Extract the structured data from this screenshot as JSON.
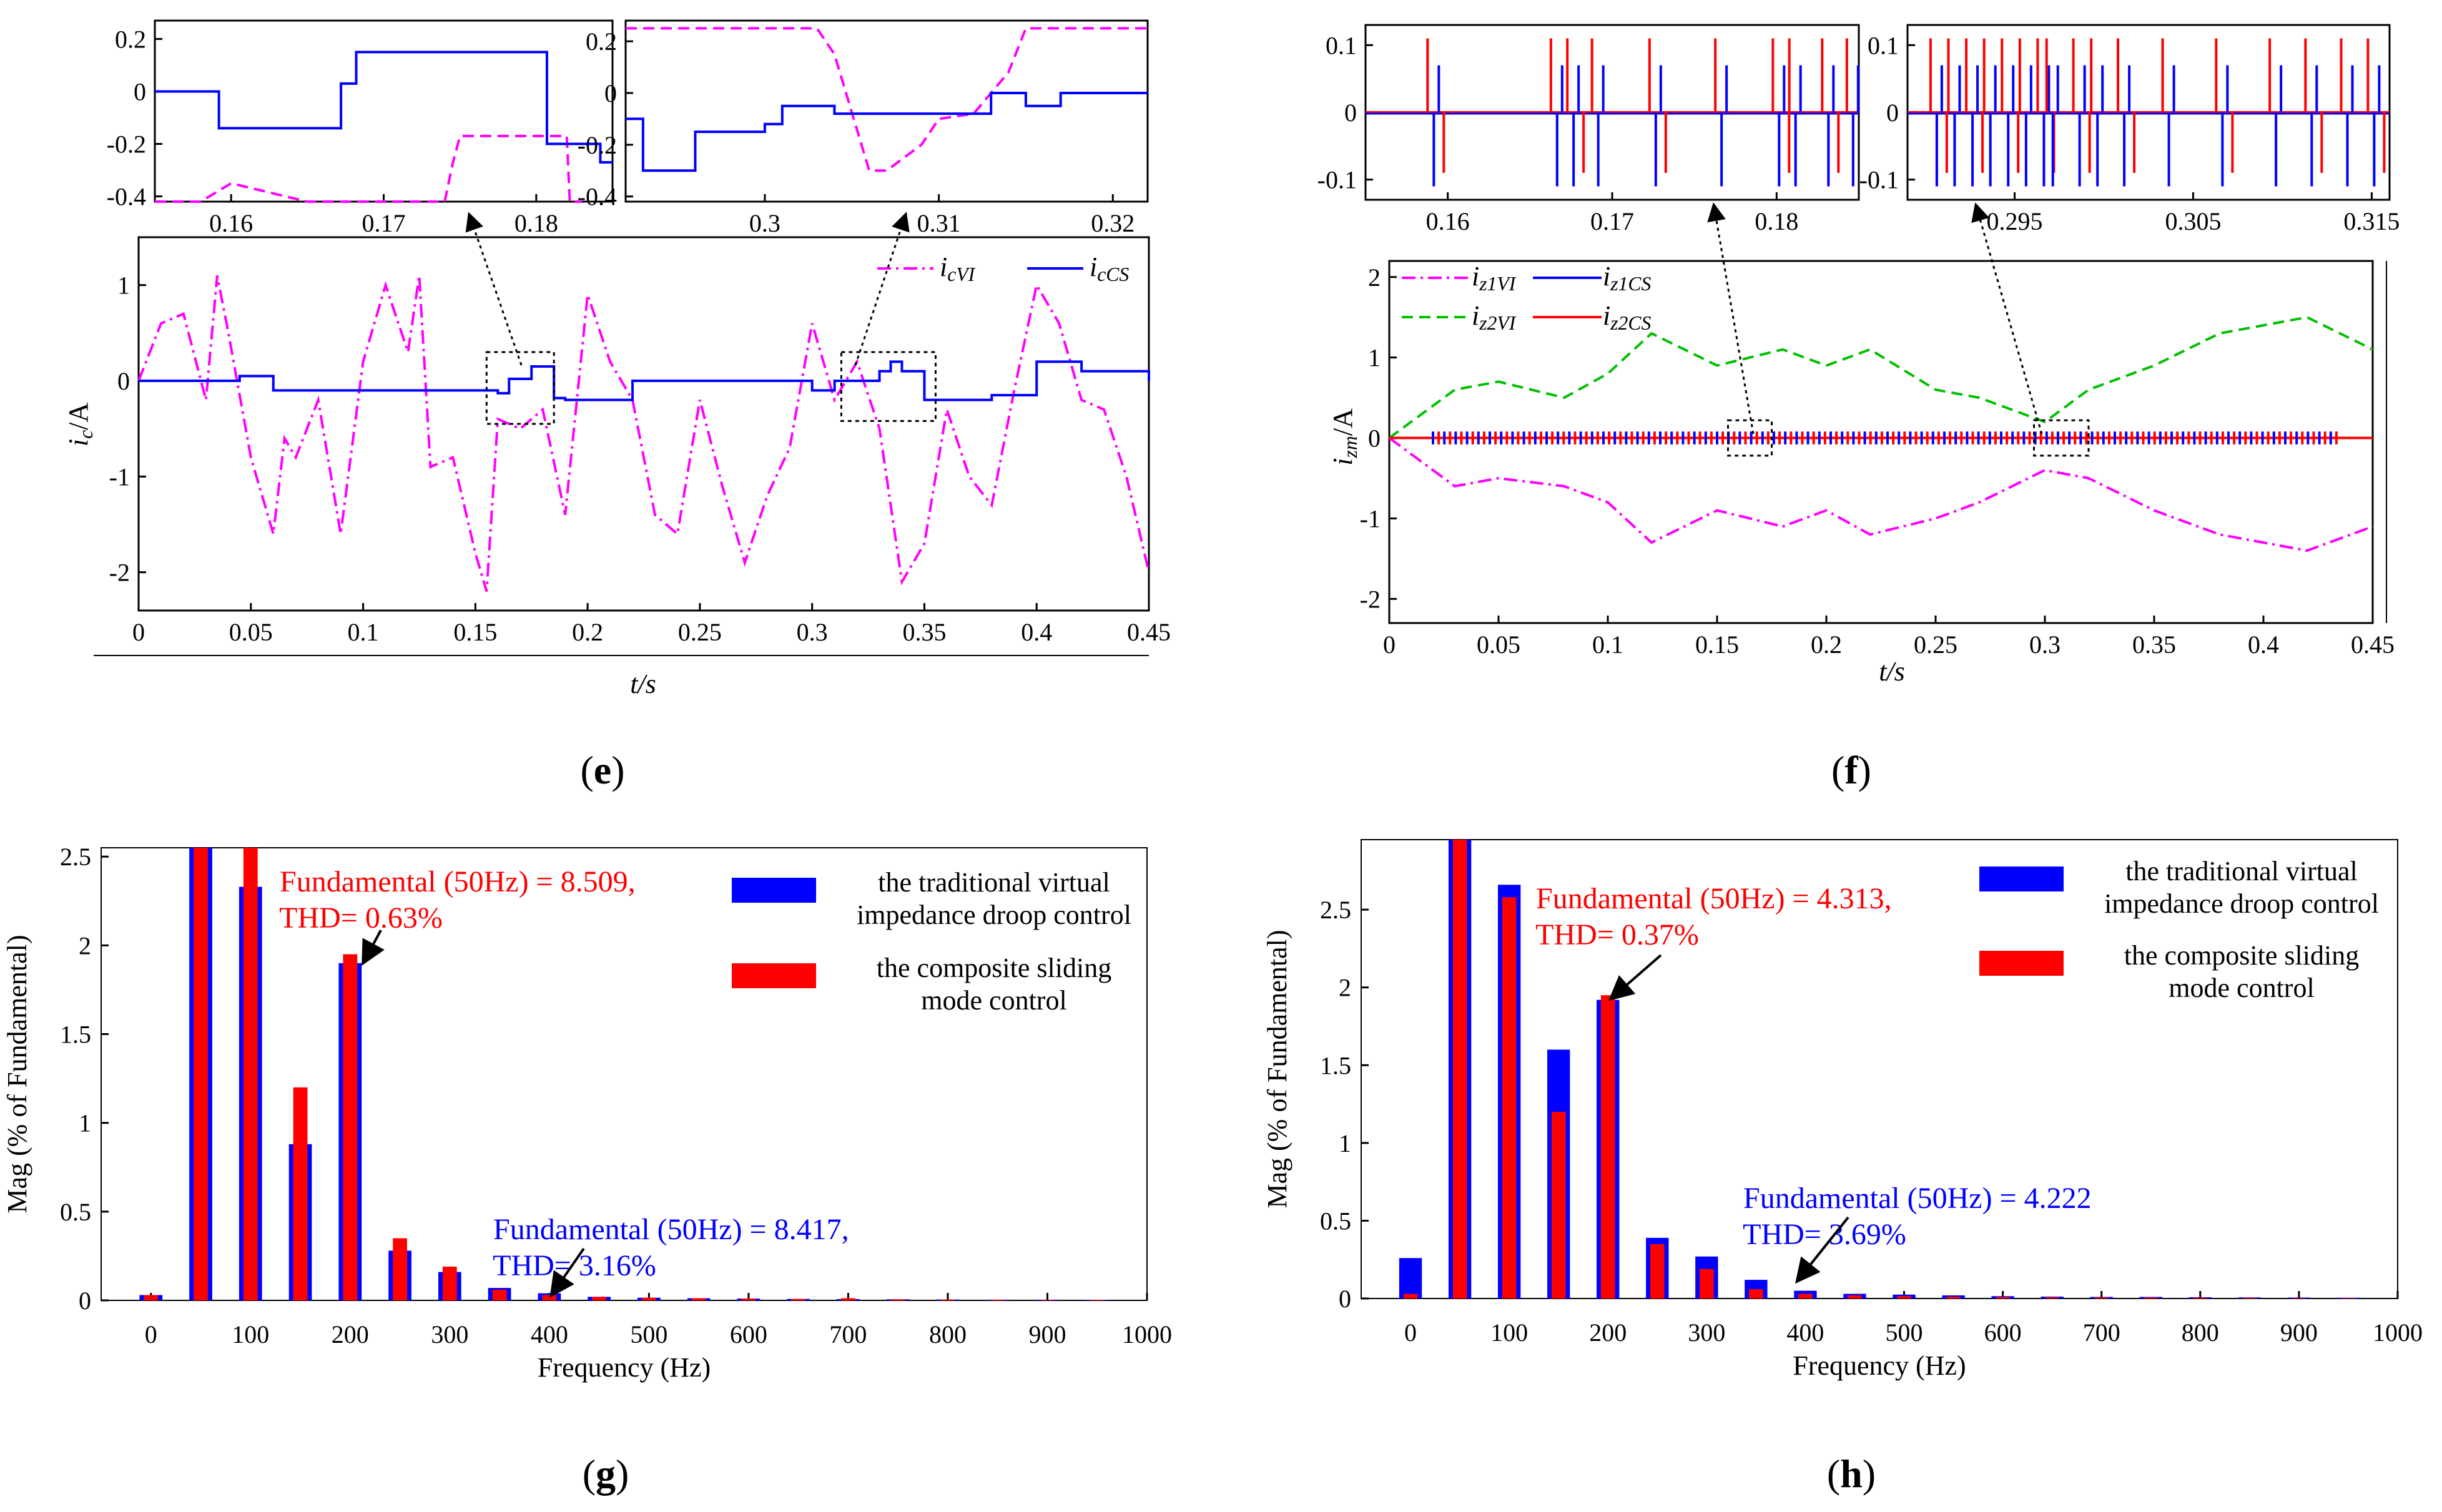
{
  "colors": {
    "magenta": "#ff00ff",
    "blue": "#0000ff",
    "red": "#ff0000",
    "green": "#00c000",
    "black": "#000000"
  },
  "panels": {
    "e": {
      "label_open": "(",
      "label_letter": "e",
      "label_close": ")"
    },
    "f": {
      "label_open": "(",
      "label_letter": "f",
      "label_close": ")"
    },
    "g": {
      "label_open": "(",
      "label_letter": "g",
      "label_close": ")"
    },
    "h": {
      "label_open": "(",
      "label_letter": "h",
      "label_close": ")"
    }
  },
  "chart_data": [
    {
      "id": "e-main",
      "type": "line",
      "xlabel": "t/s",
      "ylabel": "i_c/A",
      "xlim": [
        0,
        0.45
      ],
      "ylim": [
        -2.4,
        1.5
      ],
      "xticks": [
        "0",
        "0.05",
        "0.1",
        "0.15",
        "0.2",
        "0.25",
        "0.3",
        "0.35",
        "0.4",
        "0.45"
      ],
      "yticks": [
        "1",
        "0",
        "-1",
        "-2"
      ],
      "series": [
        {
          "name": "i_cVI",
          "style": "dash-dot",
          "color": "magenta",
          "x": [
            0,
            0.01,
            0.02,
            0.03,
            0.035,
            0.04,
            0.05,
            0.06,
            0.065,
            0.07,
            0.08,
            0.09,
            0.1,
            0.11,
            0.12,
            0.125,
            0.13,
            0.14,
            0.15,
            0.155,
            0.16,
            0.17,
            0.18,
            0.19,
            0.2,
            0.21,
            0.22,
            0.23,
            0.24,
            0.25,
            0.26,
            0.27,
            0.28,
            0.29,
            0.3,
            0.31,
            0.32,
            0.33,
            0.34,
            0.35,
            0.36,
            0.37,
            0.38,
            0.39,
            0.4,
            0.41,
            0.42,
            0.43,
            0.44,
            0.45
          ],
          "y": [
            0,
            0.6,
            0.7,
            -0.2,
            1.1,
            0.5,
            -0.8,
            -1.6,
            -0.6,
            -0.8,
            -0.2,
            -1.6,
            0.2,
            1.0,
            0.3,
            1.1,
            -0.9,
            -0.8,
            -1.8,
            -2.2,
            -0.4,
            -0.5,
            -0.3,
            -1.4,
            0.9,
            0.2,
            -0.2,
            -1.4,
            -1.6,
            -0.2,
            -1.1,
            -1.9,
            -1.2,
            -0.7,
            0.6,
            -0.2,
            0.2,
            -0.5,
            -2.1,
            -1.7,
            -0.3,
            -1.0,
            -1.3,
            -0.1,
            1.0,
            0.6,
            -0.2,
            -0.3,
            -1.0,
            -2.0
          ]
        },
        {
          "name": "i_cCS",
          "style": "solid",
          "color": "blue",
          "x": [
            0,
            0.03,
            0.045,
            0.06,
            0.1,
            0.16,
            0.165,
            0.175,
            0.18,
            0.185,
            0.19,
            0.22,
            0.25,
            0.28,
            0.3,
            0.31,
            0.33,
            0.335,
            0.34,
            0.35,
            0.38,
            0.4,
            0.42,
            0.45
          ],
          "y": [
            0.0,
            0.0,
            0.05,
            -0.1,
            -0.1,
            -0.13,
            0.02,
            0.15,
            0.15,
            -0.18,
            -0.2,
            0.0,
            0.0,
            0.0,
            -0.1,
            0.0,
            0.1,
            0.2,
            0.1,
            -0.2,
            -0.15,
            0.2,
            0.1,
            0.0
          ]
        }
      ],
      "legend": [
        "i_cVI",
        "i_cCS"
      ]
    },
    {
      "id": "e-zoom1",
      "type": "line",
      "xlim": [
        0.155,
        0.185
      ],
      "ylim": [
        -0.42,
        0.27
      ],
      "xticks": [
        "0.16",
        "0.17",
        "0.18"
      ],
      "yticks": [
        "0.2",
        "0",
        "-0.2",
        "-0.4"
      ],
      "series": [
        {
          "name": "i_cVI",
          "color": "magenta",
          "style": "dash",
          "x": [
            0.155,
            0.158,
            0.16,
            0.165,
            0.174,
            0.1745,
            0.175,
            0.182,
            0.1822,
            0.183
          ],
          "y": [
            -0.42,
            -0.42,
            -0.35,
            -0.42,
            -0.42,
            -0.28,
            -0.17,
            -0.17,
            -0.42,
            -0.42
          ]
        },
        {
          "name": "i_cCS",
          "color": "blue",
          "style": "solid",
          "x": [
            0.155,
            0.159,
            0.1592,
            0.167,
            0.1672,
            0.168,
            0.1682,
            0.1805,
            0.1807,
            0.184,
            0.1842,
            0.185
          ],
          "y": [
            0.0,
            0.0,
            -0.14,
            -0.14,
            0.03,
            0.03,
            0.15,
            0.15,
            -0.2,
            -0.2,
            -0.27,
            -0.27
          ]
        }
      ]
    },
    {
      "id": "e-zoom2",
      "type": "line",
      "xlim": [
        0.292,
        0.322
      ],
      "ylim": [
        -0.42,
        0.28
      ],
      "xticks": [
        "0.3",
        "0.31",
        "0.32"
      ],
      "yticks": [
        "0.2",
        "0",
        "-0.2",
        "-0.4"
      ],
      "series": [
        {
          "name": "i_cVI",
          "color": "magenta",
          "style": "dash",
          "x": [
            0.292,
            0.303,
            0.304,
            0.306,
            0.307,
            0.309,
            0.31,
            0.312,
            0.314,
            0.315,
            0.322
          ],
          "y": [
            0.25,
            0.25,
            0.15,
            -0.3,
            -0.3,
            -0.2,
            -0.1,
            -0.08,
            0.08,
            0.25,
            0.25
          ]
        },
        {
          "name": "i_cCS",
          "color": "blue",
          "style": "solid",
          "x": [
            0.292,
            0.293,
            0.295,
            0.296,
            0.3,
            0.301,
            0.303,
            0.304,
            0.312,
            0.313,
            0.315,
            0.317,
            0.319,
            0.32,
            0.322
          ],
          "y": [
            -0.1,
            -0.3,
            -0.3,
            -0.15,
            -0.12,
            -0.05,
            -0.05,
            -0.08,
            -0.08,
            0.0,
            -0.05,
            0.0,
            0.0,
            0.0,
            0.0
          ]
        }
      ]
    },
    {
      "id": "f-main",
      "type": "line",
      "xlabel": "t/s",
      "ylabel": "i_zm/A",
      "xlim": [
        0,
        0.45
      ],
      "ylim": [
        -2.3,
        2.2
      ],
      "xticks": [
        "0",
        "0.05",
        "0.1",
        "0.15",
        "0.2",
        "0.25",
        "0.3",
        "0.35",
        "0.4",
        "0.45"
      ],
      "yticks": [
        "2",
        "1",
        "0",
        "-1",
        "-2"
      ],
      "series": [
        {
          "name": "i_z1VI",
          "style": "dash-dot",
          "color": "magenta",
          "x": [
            0,
            0.01,
            0.03,
            0.05,
            0.08,
            0.1,
            0.12,
            0.15,
            0.18,
            0.2,
            0.22,
            0.25,
            0.27,
            0.3,
            0.32,
            0.35,
            0.38,
            0.4,
            0.42,
            0.45
          ],
          "y": [
            0,
            -0.2,
            -0.6,
            -0.5,
            -0.6,
            -0.8,
            -1.3,
            -0.9,
            -1.1,
            -0.9,
            -1.2,
            -1.0,
            -0.8,
            -0.4,
            -0.5,
            -0.9,
            -1.2,
            -1.3,
            -1.4,
            -1.1
          ]
        },
        {
          "name": "i_z1CS",
          "style": "solid",
          "color": "blue",
          "x": [
            0,
            0.45
          ],
          "y": [
            0,
            0
          ]
        },
        {
          "name": "i_z2VI",
          "style": "dash",
          "color": "green",
          "x": [
            0,
            0.01,
            0.03,
            0.05,
            0.08,
            0.1,
            0.12,
            0.15,
            0.18,
            0.2,
            0.22,
            0.25,
            0.27,
            0.3,
            0.32,
            0.35,
            0.38,
            0.4,
            0.42,
            0.45
          ],
          "y": [
            0,
            0.2,
            0.6,
            0.7,
            0.5,
            0.8,
            1.3,
            0.9,
            1.1,
            0.9,
            1.1,
            0.6,
            0.5,
            0.2,
            0.6,
            0.9,
            1.3,
            1.4,
            1.5,
            1.1
          ]
        },
        {
          "name": "i_z2CS",
          "style": "solid",
          "color": "red",
          "x": [
            0,
            0.45
          ],
          "y": [
            0,
            0
          ]
        }
      ],
      "legend": [
        "i_z1VI",
        "i_z1CS",
        "i_z2VI",
        "i_z2CS"
      ]
    },
    {
      "id": "f-zoom1",
      "type": "line",
      "xlim": [
        0.155,
        0.185
      ],
      "ylim": [
        -0.13,
        0.13
      ],
      "xticks": [
        "0.16",
        "0.17",
        "0.18"
      ],
      "yticks": [
        "0.1",
        "0",
        "-0.1"
      ],
      "spikes_at": [
        0.159,
        0.1665,
        0.1675,
        0.169,
        0.1725,
        0.1765,
        0.18,
        0.181,
        0.183,
        0.1845
      ],
      "series": [
        {
          "name": "i_z1CS",
          "color": "blue"
        },
        {
          "name": "i_z2CS",
          "color": "red"
        }
      ]
    },
    {
      "id": "f-zoom2",
      "type": "line",
      "xlim": [
        0.289,
        0.316
      ],
      "ylim": [
        -0.13,
        0.13
      ],
      "xticks": [
        "0.295",
        "0.305",
        "0.315"
      ],
      "yticks": [
        "0.1",
        "0",
        "-0.1"
      ],
      "spikes_at": [
        0.2905,
        0.2915,
        0.2925,
        0.2935,
        0.2945,
        0.2955,
        0.2965,
        0.297,
        0.2985,
        0.2995,
        0.301,
        0.3035,
        0.3065,
        0.3095,
        0.3115,
        0.3135,
        0.315
      ],
      "series": [
        {
          "name": "i_z1CS",
          "color": "blue"
        },
        {
          "name": "i_z2CS",
          "color": "red"
        }
      ]
    },
    {
      "id": "g",
      "type": "bar",
      "xlabel": "Frequency (Hz)",
      "ylabel": "Mag (% of Fundamental)",
      "xlim": [
        -50,
        1000
      ],
      "ylim": [
        0,
        2.55
      ],
      "xticks": [
        "0",
        "100",
        "200",
        "300",
        "400",
        "500",
        "600",
        "700",
        "800",
        "900",
        "1000"
      ],
      "yticks": [
        "0",
        "0.5",
        "1",
        "1.5",
        "2",
        "2.5"
      ],
      "categories": [
        0,
        50,
        100,
        150,
        200,
        250,
        300,
        350,
        400,
        450,
        500,
        550,
        600,
        650,
        700,
        750,
        800,
        850,
        900,
        950
      ],
      "series": [
        {
          "name": "the traditional virtual impedance droop control",
          "color": "blue",
          "values": [
            0.03,
            2.55,
            2.33,
            0.88,
            1.9,
            0.28,
            0.16,
            0.07,
            0.04,
            0.02,
            0.015,
            0.012,
            0.01,
            0.008,
            0.007,
            0.006,
            0.005,
            0.004,
            0.004,
            0.003
          ]
        },
        {
          "name": "the composite sliding mode control",
          "color": "red",
          "values": [
            0.03,
            2.55,
            2.55,
            1.2,
            1.95,
            0.35,
            0.19,
            0.06,
            0.03,
            0.02,
            0.015,
            0.012,
            0.01,
            0.008,
            0.012,
            0.006,
            0.005,
            0.004,
            0.003,
            0.003
          ]
        }
      ],
      "legend_lines": [
        [
          "the traditional virtual",
          "impedance droop control"
        ],
        [
          "the composite sliding",
          "mode control"
        ]
      ],
      "annotations": [
        {
          "color": "red",
          "lines": [
            "Fundamental (50Hz) = 8.509,",
            "THD= 0.63%"
          ]
        },
        {
          "color": "blue",
          "lines": [
            "Fundamental (50Hz) = 8.417,",
            "THD= 3.16%"
          ]
        }
      ]
    },
    {
      "id": "h",
      "type": "bar",
      "xlabel": "Frequency (Hz)",
      "ylabel": "Mag (% of Fundamental)",
      "xlim": [
        -50,
        1000
      ],
      "ylim": [
        0,
        2.95
      ],
      "xticks": [
        "0",
        "100",
        "200",
        "300",
        "400",
        "500",
        "600",
        "700",
        "800",
        "900",
        "1000"
      ],
      "yticks": [
        "0",
        "0.5",
        "1",
        "1.5",
        "2",
        "2.5"
      ],
      "categories": [
        0,
        50,
        100,
        150,
        200,
        250,
        300,
        350,
        400,
        450,
        500,
        550,
        600,
        650,
        700,
        750,
        800,
        850,
        900,
        950
      ],
      "series": [
        {
          "name": "the traditional virtual impedance droop control",
          "color": "blue",
          "values": [
            0.26,
            2.95,
            2.66,
            1.6,
            1.92,
            0.39,
            0.27,
            0.12,
            0.05,
            0.03,
            0.025,
            0.02,
            0.015,
            0.012,
            0.01,
            0.01,
            0.008,
            0.007,
            0.006,
            0.005
          ]
        },
        {
          "name": "the composite sliding mode control",
          "color": "red",
          "values": [
            0.03,
            2.95,
            2.58,
            1.2,
            1.95,
            0.35,
            0.19,
            0.06,
            0.03,
            0.02,
            0.015,
            0.012,
            0.01,
            0.008,
            0.007,
            0.006,
            0.005,
            0.004,
            0.003,
            0.003
          ]
        }
      ],
      "legend_lines": [
        [
          "the traditional virtual",
          "impedance droop control"
        ],
        [
          "the composite sliding",
          "mode control"
        ]
      ],
      "annotations": [
        {
          "color": "red",
          "lines": [
            "Fundamental (50Hz) = 4.313,",
            "THD= 0.37%"
          ]
        },
        {
          "color": "blue",
          "lines": [
            "Fundamental (50Hz) = 4.222",
            "THD= 3.69%"
          ]
        }
      ]
    }
  ]
}
